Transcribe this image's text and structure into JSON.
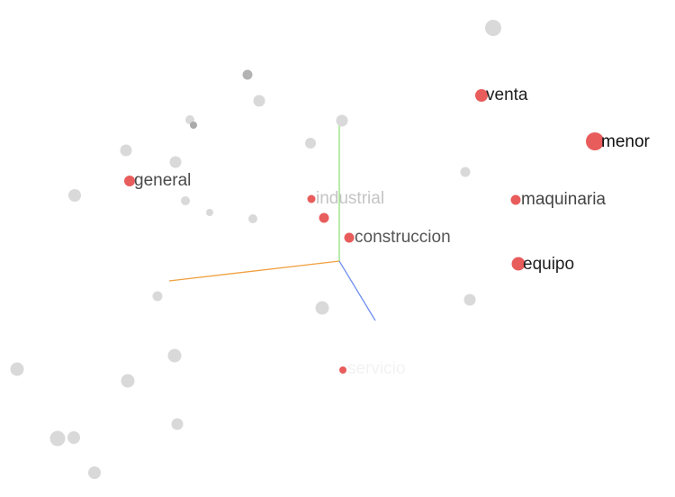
{
  "projector": {
    "highlight_color": "#e85c5c",
    "background_point_color": "#d9d9d9",
    "axis_colors": {
      "x": "#f0a040",
      "y": "#8ee07a",
      "z": "#6f8ff0"
    },
    "labeled_points": [
      {
        "name": "label-venta",
        "label": "venta",
        "size": 14,
        "text_color": "#1f1f1f"
      },
      {
        "name": "label-menor",
        "label": "menor",
        "size": 20,
        "text_color": "#111111"
      },
      {
        "name": "label-maquinaria",
        "label": "maquinaria",
        "size": 11,
        "text_color": "#444444"
      },
      {
        "name": "label-general",
        "label": "general",
        "size": 12,
        "text_color": "#4a4a4a"
      },
      {
        "name": "label-industrial",
        "label": "industrial",
        "size": 9,
        "text_color": "#c4c4c4"
      },
      {
        "name": "label-construccion",
        "label": "construccion",
        "size": 11,
        "text_color": "#555555"
      },
      {
        "name": "label-equipo",
        "label": "equipo",
        "size": 15,
        "text_color": "#1f1f1f"
      },
      {
        "name": "label-servicio",
        "label": "servicio",
        "size": 8,
        "text_color": "#f2f2f2"
      }
    ],
    "unlabeled_highlighted_points": [
      {
        "size": 11
      }
    ]
  }
}
